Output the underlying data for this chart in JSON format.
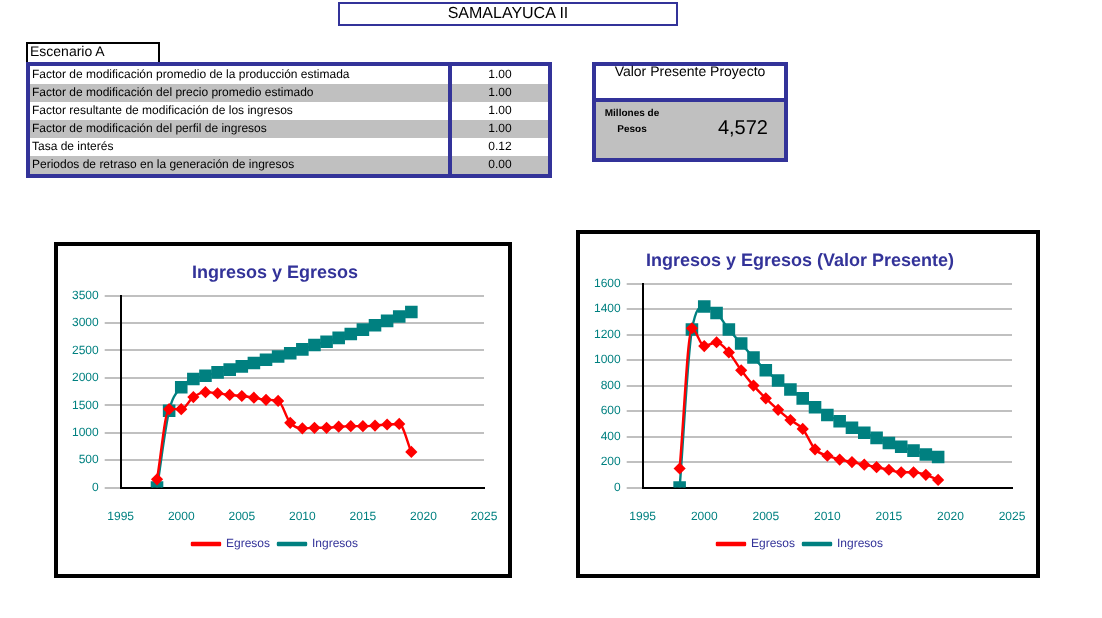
{
  "chart_data": [
    {
      "type": "other",
      "title": "SAMALAYUCA II",
      "annotations": [
        "Escenario A",
        "Factor de modificación promedio de la producción estimada",
        "1.00",
        "Factor de modificación del precio promedio estimado",
        "1.00",
        "Factor resultante de modificación de los ingresos",
        "1.00",
        "Factor de modificación del perfil de ingresos",
        "1.00",
        "Tasa de interés",
        "0.12",
        "Periodos de retraso en la generación de ingresos",
        "0.00",
        "Valor Presente Proyecto",
        "Millones de Pesos",
        "4,572"
      ]
    },
    {
      "type": "line",
      "title": "Ingresos y Egresos",
      "x": [
        1998,
        1999,
        2000,
        2001,
        2002,
        2003,
        2004,
        2005,
        2006,
        2007,
        2008,
        2009,
        2010,
        2011,
        2012,
        2013,
        2014,
        2015,
        2016,
        2017,
        2018,
        2019
      ],
      "xlim": [
        1995,
        2025
      ],
      "xticks": [
        1995,
        2000,
        2005,
        2010,
        2015,
        2020,
        2025
      ],
      "ylim": [
        0,
        3500
      ],
      "yticks": [
        0,
        500,
        1000,
        1500,
        2000,
        2500,
        3000,
        3500
      ],
      "grid": "y",
      "legend": "bottom",
      "series": [
        {
          "name": "Egresos",
          "color": "#ff0000",
          "marker": "diamond",
          "values": [
            150,
            1430,
            1430,
            1650,
            1740,
            1720,
            1690,
            1670,
            1640,
            1600,
            1580,
            1180,
            1080,
            1090,
            1090,
            1110,
            1120,
            1120,
            1130,
            1150,
            1160,
            650
          ]
        },
        {
          "name": "Ingresos",
          "color": "#008080",
          "marker": "square",
          "values": [
            0,
            1400,
            1830,
            1980,
            2040,
            2100,
            2150,
            2210,
            2270,
            2330,
            2390,
            2450,
            2520,
            2600,
            2660,
            2730,
            2800,
            2880,
            2960,
            3040,
            3120,
            3200
          ]
        }
      ]
    },
    {
      "type": "line",
      "title": "Ingresos y Egresos (Valor Presente)",
      "x": [
        1998,
        1999,
        2000,
        2001,
        2002,
        2003,
        2004,
        2005,
        2006,
        2007,
        2008,
        2009,
        2010,
        2011,
        2012,
        2013,
        2014,
        2015,
        2016,
        2017,
        2018,
        2019
      ],
      "xlim": [
        1995,
        2025
      ],
      "xticks": [
        1995,
        2000,
        2005,
        2010,
        2015,
        2020,
        2025
      ],
      "ylim": [
        0,
        1600
      ],
      "yticks": [
        0,
        200,
        400,
        600,
        800,
        1000,
        1200,
        1400,
        1600
      ],
      "grid": "y",
      "legend": "bottom",
      "series": [
        {
          "name": "Egresos",
          "color": "#ff0000",
          "marker": "diamond",
          "values": [
            150,
            1250,
            1110,
            1140,
            1060,
            920,
            800,
            700,
            610,
            530,
            460,
            300,
            250,
            220,
            200,
            180,
            160,
            140,
            120,
            120,
            100,
            60
          ]
        },
        {
          "name": "Ingresos",
          "color": "#008080",
          "marker": "square",
          "values": [
            0,
            1240,
            1420,
            1370,
            1240,
            1130,
            1020,
            920,
            840,
            770,
            700,
            630,
            570,
            520,
            470,
            430,
            390,
            350,
            320,
            290,
            260,
            240
          ]
        }
      ]
    }
  ]
}
